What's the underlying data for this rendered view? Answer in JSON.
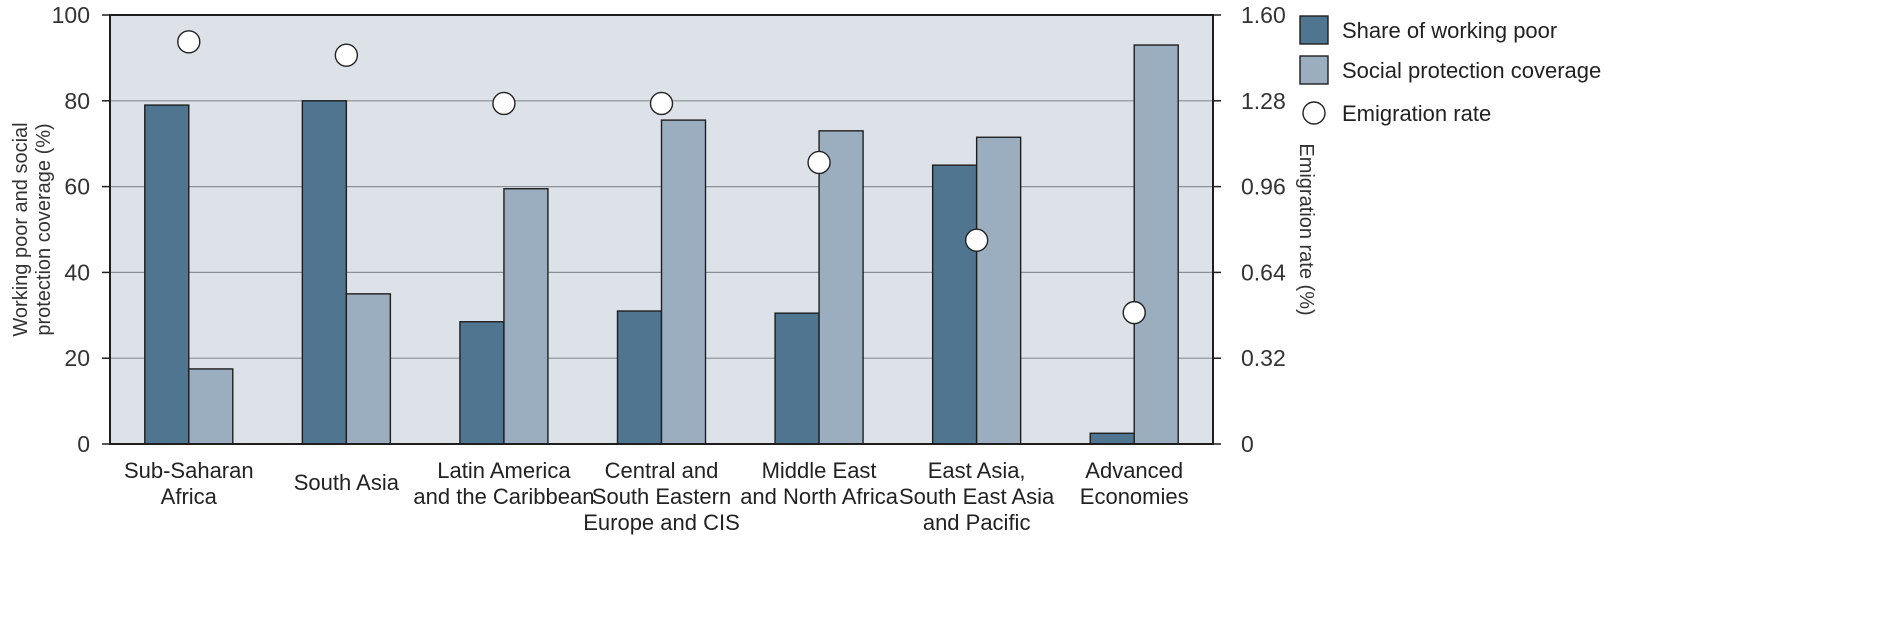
{
  "chart_data": {
    "type": "bar",
    "categories": [
      [
        "Sub-Saharan",
        "Africa"
      ],
      [
        "South Asia"
      ],
      [
        "Latin America",
        "and the Caribbean"
      ],
      [
        "Central and",
        "South Eastern",
        "Europe and CIS"
      ],
      [
        "Middle East",
        "and North Africa"
      ],
      [
        "East Asia,",
        "South East Asia",
        "and Pacific"
      ],
      [
        "Advanced",
        "Economies"
      ]
    ],
    "series": [
      {
        "name": "Share of working poor",
        "axis": "left",
        "kind": "bar",
        "color": "#4f7590",
        "values": [
          79,
          80,
          28.5,
          31,
          30.5,
          65,
          2.5
        ]
      },
      {
        "name": "Social protection coverage",
        "axis": "left",
        "kind": "bar",
        "color": "#9aaec0",
        "values": [
          17.5,
          35,
          59.5,
          75.5,
          73,
          71.5,
          93
        ]
      },
      {
        "name": "Emigration rate",
        "axis": "right",
        "kind": "marker",
        "color": "#ffffff",
        "values": [
          1.5,
          1.45,
          1.27,
          1.27,
          1.05,
          0.76,
          0.49
        ]
      }
    ],
    "left_axis": {
      "label": [
        "Working poor and social",
        "protection coverage (%)"
      ],
      "ylim": [
        0,
        100
      ],
      "ticks": [
        0,
        20,
        40,
        60,
        80,
        100
      ]
    },
    "right_axis": {
      "label": "Emigration rate (%)",
      "ylim": [
        0,
        1.6
      ],
      "ticks": [
        "0",
        "0.32",
        "0.64",
        "0.96",
        "1.28",
        "1.60"
      ]
    },
    "grid": true,
    "plot_background": "#dde2e8",
    "legend_position": "right"
  }
}
